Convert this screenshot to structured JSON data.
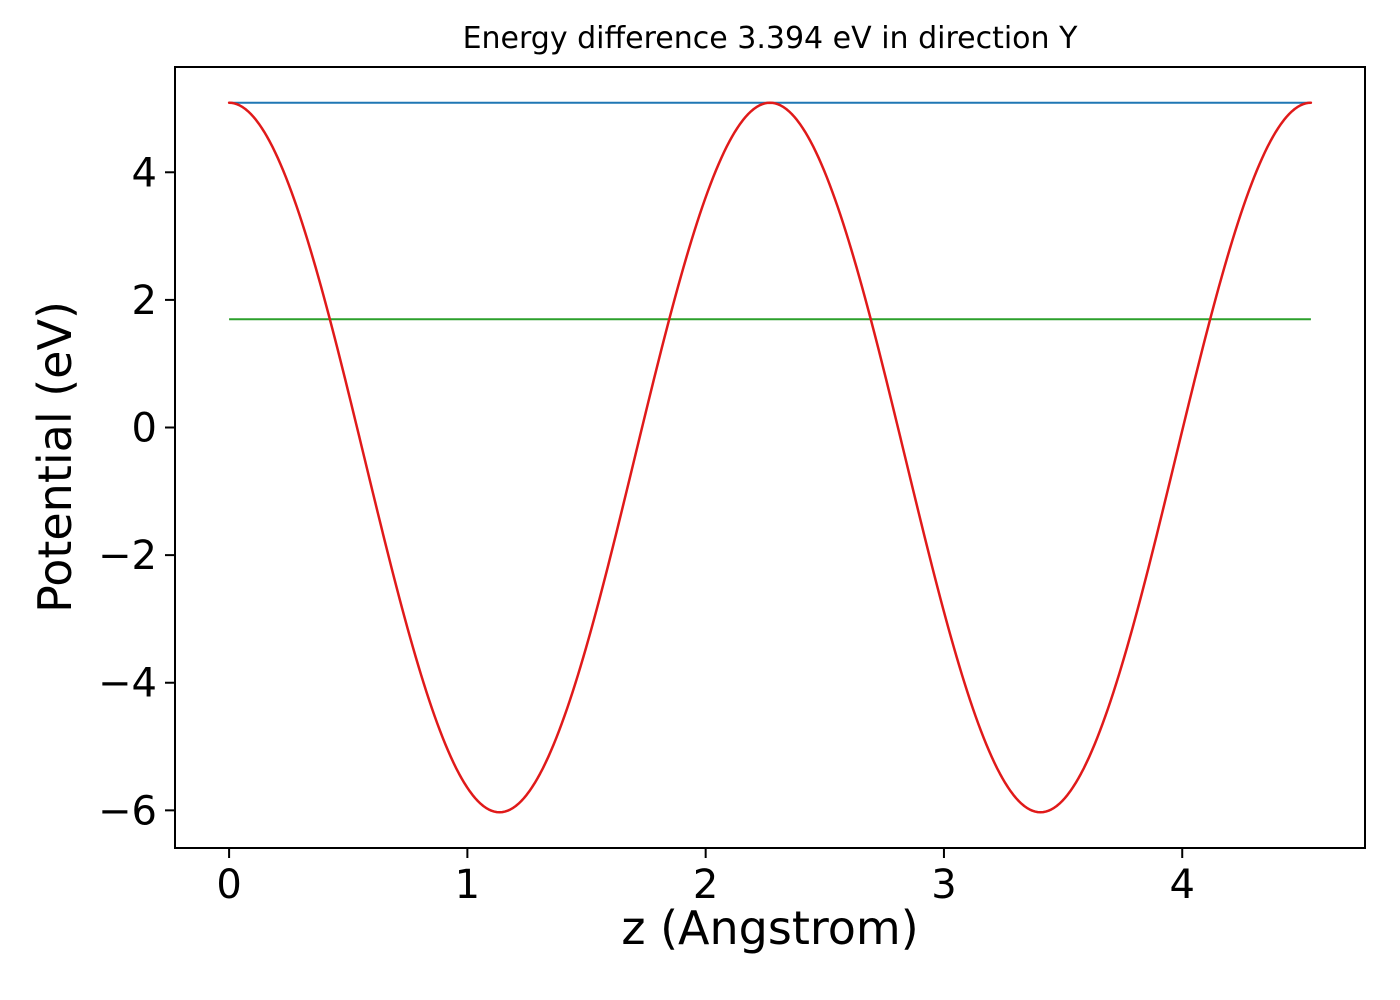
{
  "chart_data": {
    "type": "line",
    "title": "Energy difference 3.394 eV in direction Y",
    "xlabel": "z (Angstrom)",
    "ylabel": "Potential (eV)",
    "xlim": [
      -0.227,
      4.767
    ],
    "ylim": [
      -6.59,
      5.65
    ],
    "x_ticks": [
      0,
      1,
      2,
      3,
      4
    ],
    "y_ticks": [
      -6,
      -4,
      -2,
      0,
      2,
      4
    ],
    "grid": false,
    "legend": "none",
    "energy_difference_eV": 3.394,
    "direction": "Y",
    "series": [
      {
        "name": "vacuum-level-line",
        "shape": "hline",
        "y": 5.09,
        "x_start": 0,
        "x_end": 4.54,
        "color": "#1f77b4",
        "linewidth": 2
      },
      {
        "name": "reference-level-line",
        "shape": "hline",
        "y": 1.696,
        "x_start": 0,
        "x_end": 4.54,
        "color": "#2ca02c",
        "linewidth": 2
      },
      {
        "name": "potential-curve",
        "shape": "cosine",
        "x_start": 0,
        "x_end": 4.54,
        "period": 2.27,
        "y_max": 5.09,
        "y_min": -6.03,
        "color": "#e01a1a",
        "linewidth": 2.5
      }
    ],
    "axis_color": "#000000",
    "background": "#ffffff"
  }
}
